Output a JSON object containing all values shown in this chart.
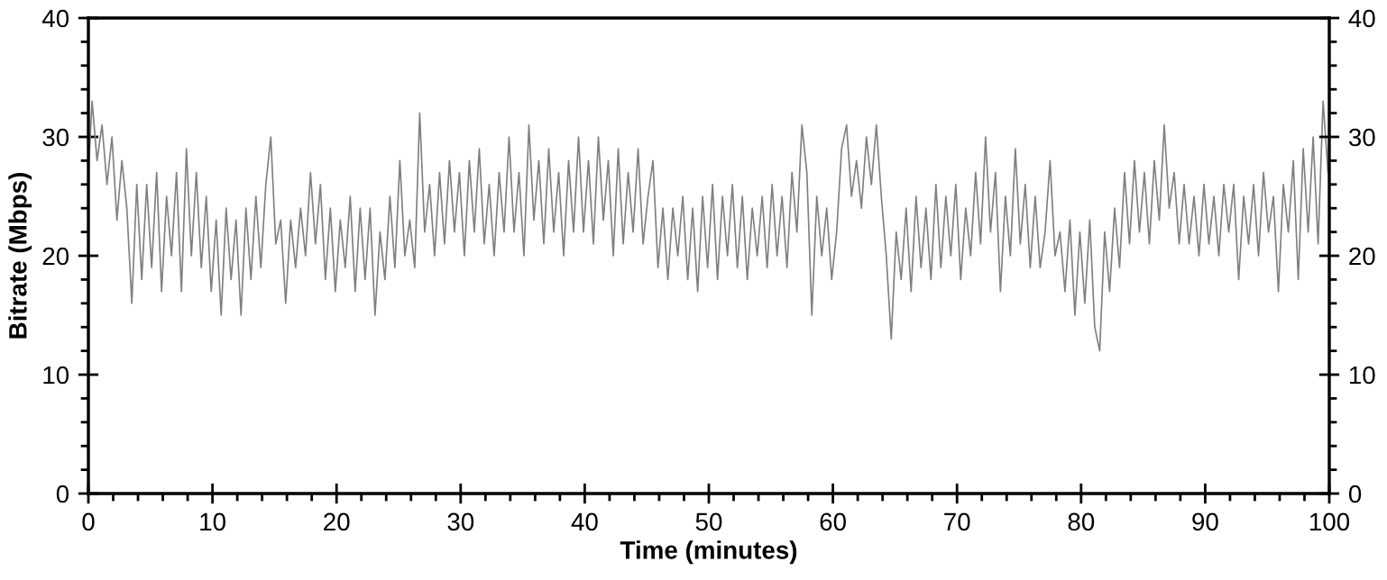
{
  "chart_data": {
    "type": "line",
    "xlabel": "Time (minutes)",
    "ylabel": "Bitrate (Mbps)",
    "xlim": [
      0,
      100
    ],
    "xticks": [
      0,
      10,
      20,
      30,
      40,
      50,
      60,
      70,
      80,
      90,
      100
    ],
    "ylim": [
      0,
      40
    ],
    "yticks": [
      0,
      10,
      20,
      30,
      40
    ],
    "y2lim": [
      0,
      40
    ],
    "y2ticks": [
      0,
      10,
      20,
      30,
      40
    ],
    "grid": false,
    "legend": false,
    "marker": "none",
    "line_style": "solid",
    "series": [
      {
        "color": "#808080",
        "x": [
          0,
          0.3,
          0.7,
          1.1,
          1.5,
          1.9,
          2.3,
          2.7,
          3.1,
          3.5,
          3.9,
          4.3,
          4.7,
          5.1,
          5.5,
          5.9,
          6.3,
          6.7,
          7.1,
          7.5,
          7.9,
          8.3,
          8.7,
          9.1,
          9.5,
          9.9,
          10.3,
          10.7,
          11.1,
          11.5,
          11.9,
          12.3,
          12.7,
          13.1,
          13.5,
          13.9,
          14.3,
          14.7,
          15.1,
          15.5,
          15.9,
          16.3,
          16.7,
          17.1,
          17.5,
          17.9,
          18.3,
          18.7,
          19.1,
          19.5,
          19.9,
          20.3,
          20.7,
          21.1,
          21.5,
          21.9,
          22.3,
          22.7,
          23.1,
          23.5,
          23.9,
          24.3,
          24.7,
          25.1,
          25.5,
          25.9,
          26.3,
          26.7,
          27.1,
          27.5,
          27.9,
          28.3,
          28.7,
          29.1,
          29.5,
          29.9,
          30.3,
          30.7,
          31.1,
          31.5,
          31.9,
          32.3,
          32.7,
          33.1,
          33.5,
          33.9,
          34.3,
          34.7,
          35.1,
          35.5,
          35.9,
          36.3,
          36.7,
          37.1,
          37.5,
          37.9,
          38.3,
          38.7,
          39.1,
          39.5,
          39.9,
          40.3,
          40.7,
          41.1,
          41.5,
          41.9,
          42.3,
          42.7,
          43.1,
          43.5,
          43.9,
          44.3,
          44.7,
          45.1,
          45.5,
          45.9,
          46.3,
          46.7,
          47.1,
          47.5,
          47.9,
          48.3,
          48.7,
          49.1,
          49.5,
          49.9,
          50.3,
          50.7,
          51.1,
          51.5,
          51.9,
          52.3,
          52.7,
          53.1,
          53.5,
          53.9,
          54.3,
          54.7,
          55.1,
          55.5,
          55.9,
          56.3,
          56.7,
          57.1,
          57.5,
          57.9,
          58.3,
          58.7,
          59.1,
          59.5,
          59.9,
          60.3,
          60.7,
          61.1,
          61.5,
          61.9,
          62.3,
          62.7,
          63.1,
          63.5,
          63.9,
          64.3,
          64.7,
          65.1,
          65.5,
          65.9,
          66.3,
          66.7,
          67.1,
          67.5,
          67.9,
          68.3,
          68.7,
          69.1,
          69.5,
          69.9,
          70.3,
          70.7,
          71.1,
          71.5,
          71.9,
          72.3,
          72.7,
          73.1,
          73.5,
          73.9,
          74.3,
          74.7,
          75.1,
          75.5,
          75.9,
          76.3,
          76.7,
          77.1,
          77.5,
          77.9,
          78.3,
          78.7,
          79.1,
          79.5,
          79.9,
          80.3,
          80.7,
          81.1,
          81.5,
          81.9,
          82.3,
          82.7,
          83.1,
          83.5,
          83.9,
          84.3,
          84.7,
          85.1,
          85.5,
          85.9,
          86.3,
          86.7,
          87.1,
          87.5,
          87.9,
          88.3,
          88.7,
          89.1,
          89.5,
          89.9,
          90.3,
          90.7,
          91.1,
          91.5,
          91.9,
          92.3,
          92.7,
          93.1,
          93.5,
          93.9,
          94.3,
          94.7,
          95.1,
          95.5,
          95.9,
          96.3,
          96.7,
          97.1,
          97.5,
          97.9,
          98.3,
          98.7,
          99.1,
          99.5,
          99.9
        ],
        "values": [
          27,
          33,
          28,
          31,
          26,
          30,
          23,
          28,
          24,
          16,
          26,
          18,
          26,
          19,
          27,
          17,
          25,
          20,
          27,
          17,
          29,
          20,
          27,
          19,
          25,
          17,
          23,
          15,
          24,
          18,
          23,
          15,
          24,
          18,
          25,
          19,
          26,
          30,
          21,
          23,
          16,
          23,
          19,
          24,
          20,
          27,
          21,
          26,
          18,
          24,
          17,
          23,
          19,
          25,
          17,
          24,
          18,
          24,
          15,
          22,
          18,
          25,
          19,
          28,
          20,
          23,
          19,
          32,
          22,
          26,
          20,
          27,
          21,
          28,
          22,
          27,
          20,
          28,
          22,
          29,
          21,
          26,
          20,
          27,
          22,
          30,
          22,
          27,
          20,
          31,
          23,
          28,
          21,
          29,
          22,
          27,
          20,
          28,
          22,
          30,
          22,
          28,
          21,
          30,
          23,
          28,
          20,
          29,
          21,
          27,
          22,
          29,
          21,
          25,
          28,
          19,
          24,
          18,
          24,
          20,
          25,
          18,
          24,
          17,
          25,
          19,
          26,
          18,
          25,
          20,
          26,
          19,
          25,
          18,
          24,
          20,
          25,
          19,
          26,
          20,
          25,
          19,
          27,
          22,
          31,
          27,
          15,
          25,
          20,
          24,
          18,
          22,
          29,
          31,
          25,
          28,
          24,
          30,
          26,
          31,
          25,
          20,
          13,
          22,
          18,
          24,
          17,
          25,
          19,
          24,
          18,
          26,
          19,
          25,
          20,
          26,
          18,
          24,
          20,
          27,
          21,
          30,
          22,
          27,
          17,
          25,
          20,
          29,
          21,
          26,
          19,
          25,
          19,
          22,
          28,
          20,
          22,
          17,
          23,
          15,
          22,
          16,
          23,
          14,
          12,
          22,
          17,
          24,
          19,
          27,
          21,
          28,
          22,
          27,
          21,
          28,
          23,
          31,
          24,
          27,
          21,
          26,
          21,
          25,
          20,
          26,
          21,
          25,
          20,
          26,
          22,
          26,
          18,
          25,
          21,
          26,
          20,
          27,
          22,
          25,
          17,
          26,
          22,
          28,
          18,
          29,
          22,
          30,
          21,
          33,
          27
        ]
      }
    ]
  }
}
